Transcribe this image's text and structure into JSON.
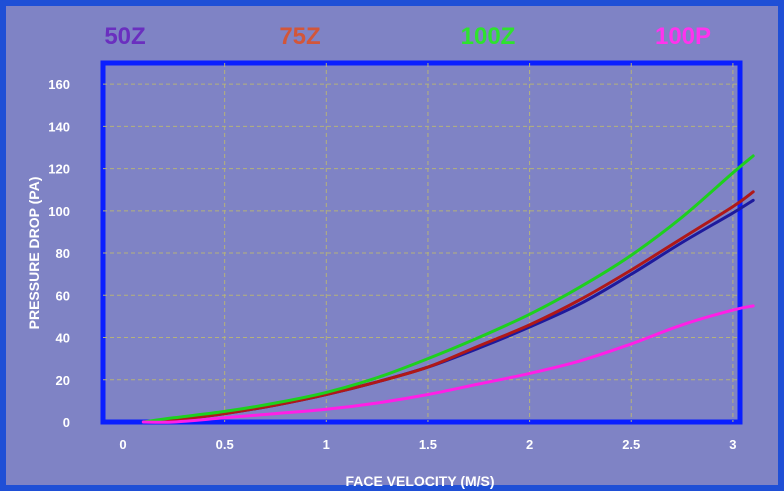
{
  "chart_data": {
    "type": "line",
    "title": "",
    "xlabel": "FACE VELOCITY (M/S)",
    "ylabel": "PRESSURE DROP (PA)",
    "xlim": [
      0,
      3.1
    ],
    "ylim": [
      0,
      170
    ],
    "x_ticks": [
      "0",
      "0.5",
      "1",
      "1.5",
      "2",
      "2.5",
      "3"
    ],
    "y_ticks": [
      {
        "value": 0,
        "label": "0"
      },
      {
        "value": 20,
        "label": "20"
      },
      {
        "value": 40,
        "label": "40"
      },
      {
        "value": 60,
        "label": "60"
      },
      {
        "value": 80,
        "label": "80"
      },
      {
        "value": 100,
        "label": "100"
      },
      {
        "value": 120,
        "label": "120"
      },
      {
        "value": 140,
        "label": "140"
      },
      {
        "value": 160,
        "label": "160"
      }
    ],
    "grid": true,
    "legend_position": "top",
    "x": [
      0.1,
      0.25,
      0.5,
      0.75,
      1.0,
      1.25,
      1.5,
      1.75,
      2.0,
      2.25,
      2.5,
      2.75,
      3.0,
      3.1
    ],
    "series": [
      {
        "name": "50Z",
        "color": "#6a2fbf",
        "line_color": "#1e1a9c",
        "values": [
          0,
          1,
          4,
          8,
          13,
          19,
          26,
          35,
          45,
          56,
          70,
          85,
          99,
          105
        ]
      },
      {
        "name": "75Z",
        "color": "#d2563a",
        "line_color": "#b01818",
        "values": [
          0,
          1,
          4,
          8,
          13,
          19,
          26,
          36,
          46,
          58,
          72,
          87,
          102,
          109
        ]
      },
      {
        "name": "100Z",
        "color": "#2ee32e",
        "line_color": "#1ed01e",
        "values": [
          0,
          2,
          5,
          9,
          14,
          21,
          30,
          40,
          51,
          64,
          79,
          97,
          118,
          126
        ]
      },
      {
        "name": "100P",
        "color": "#ff33ee",
        "line_color": "#ff1fe6",
        "values": [
          0,
          0,
          2,
          4,
          6,
          9,
          13,
          18,
          23,
          29,
          37,
          46,
          53,
          55
        ]
      }
    ]
  }
}
